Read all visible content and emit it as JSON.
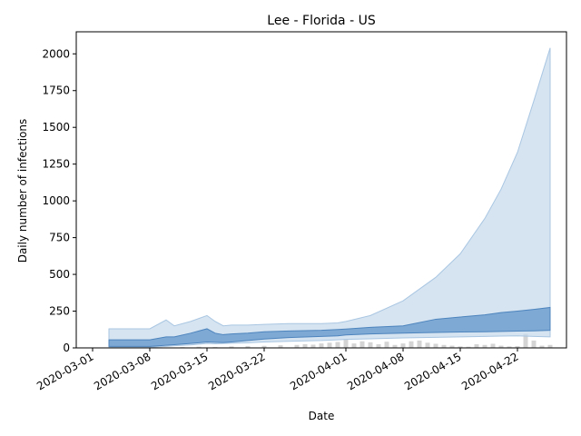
{
  "chart_data": {
    "type": "area",
    "title": "Lee - Florida - US",
    "xlabel": "Date",
    "ylabel": "Daily number of infections",
    "xlim": [
      "2020-02-28",
      "2020-04-28"
    ],
    "ylim": [
      0,
      2150
    ],
    "x_ticks": [
      "2020-03-01",
      "2020-03-08",
      "2020-03-15",
      "2020-03-22",
      "2020-04-01",
      "2020-04-08",
      "2020-04-15",
      "2020-04-22"
    ],
    "y_ticks": [
      0,
      250,
      500,
      750,
      1000,
      1250,
      1500,
      1750,
      2000
    ],
    "grid": false,
    "legend": "none",
    "colors": {
      "outer_band": "#c6d9ec",
      "outer_band_edge": "#a9c6e2",
      "inner_band": "#6f9fcf",
      "inner_band_edge": "#4d84bd",
      "bars": "#d4d4d4",
      "axis": "#000000"
    },
    "series": [
      {
        "type": "band",
        "style": "outer",
        "x": [
          "2020-03-03",
          "2020-03-08",
          "2020-03-10",
          "2020-03-11",
          "2020-03-13",
          "2020-03-14",
          "2020-03-15",
          "2020-03-16",
          "2020-03-17",
          "2020-03-18",
          "2020-03-20",
          "2020-03-22",
          "2020-03-25",
          "2020-03-29",
          "2020-03-31",
          "2020-04-01",
          "2020-04-04",
          "2020-04-08",
          "2020-04-12",
          "2020-04-15",
          "2020-04-18",
          "2020-04-20",
          "2020-04-22",
          "2020-04-24",
          "2020-04-26"
        ],
        "lower": [
          5,
          5,
          10,
          15,
          20,
          25,
          30,
          28,
          30,
          32,
          35,
          40,
          45,
          50,
          55,
          58,
          62,
          68,
          72,
          75,
          78,
          80,
          82,
          78,
          75
        ],
        "upper": [
          130,
          130,
          190,
          150,
          180,
          200,
          220,
          180,
          150,
          155,
          155,
          160,
          165,
          165,
          170,
          180,
          220,
          320,
          480,
          640,
          880,
          1080,
          1330,
          1680,
          2040
        ]
      },
      {
        "type": "band",
        "style": "inner",
        "x": [
          "2020-03-03",
          "2020-03-08",
          "2020-03-10",
          "2020-03-11",
          "2020-03-13",
          "2020-03-14",
          "2020-03-15",
          "2020-03-16",
          "2020-03-17",
          "2020-03-18",
          "2020-03-20",
          "2020-03-22",
          "2020-03-25",
          "2020-03-29",
          "2020-03-31",
          "2020-04-01",
          "2020-04-04",
          "2020-04-08",
          "2020-04-12",
          "2020-04-15",
          "2020-04-18",
          "2020-04-20",
          "2020-04-22",
          "2020-04-24",
          "2020-04-26"
        ],
        "lower": [
          10,
          10,
          18,
          22,
          30,
          35,
          40,
          38,
          36,
          40,
          50,
          60,
          70,
          78,
          82,
          88,
          95,
          100,
          105,
          108,
          110,
          112,
          114,
          116,
          120
        ],
        "upper": [
          55,
          55,
          75,
          75,
          100,
          115,
          130,
          100,
          90,
          95,
          100,
          110,
          115,
          120,
          125,
          128,
          140,
          150,
          195,
          210,
          225,
          240,
          250,
          262,
          275
        ]
      },
      {
        "type": "bar",
        "x": [
          "2020-03-12",
          "2020-03-14",
          "2020-03-16",
          "2020-03-18",
          "2020-03-20",
          "2020-03-22",
          "2020-03-24",
          "2020-03-26",
          "2020-03-27",
          "2020-03-28",
          "2020-03-29",
          "2020-03-30",
          "2020-03-31",
          "2020-04-01",
          "2020-04-02",
          "2020-04-03",
          "2020-04-04",
          "2020-04-05",
          "2020-04-06",
          "2020-04-07",
          "2020-04-08",
          "2020-04-09",
          "2020-04-10",
          "2020-04-11",
          "2020-04-12",
          "2020-04-13",
          "2020-04-14",
          "2020-04-15",
          "2020-04-16",
          "2020-04-17",
          "2020-04-18",
          "2020-04-19",
          "2020-04-20",
          "2020-04-21",
          "2020-04-22",
          "2020-04-23",
          "2020-04-24",
          "2020-04-25",
          "2020-04-26"
        ],
        "values": [
          5,
          8,
          6,
          10,
          12,
          14,
          18,
          20,
          25,
          22,
          30,
          35,
          40,
          60,
          30,
          45,
          38,
          25,
          42,
          20,
          30,
          45,
          50,
          35,
          28,
          20,
          15,
          10,
          8,
          25,
          20,
          28,
          15,
          10,
          12,
          95,
          50,
          15,
          20
        ]
      }
    ]
  }
}
